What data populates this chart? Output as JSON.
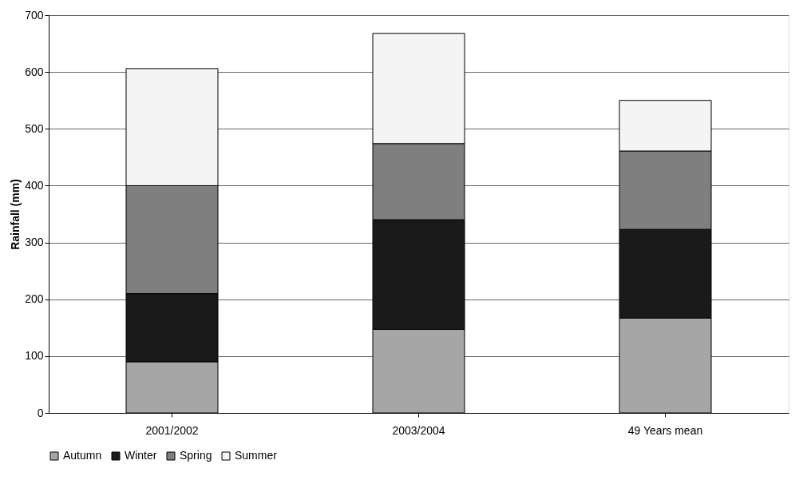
{
  "chart_data": {
    "type": "bar",
    "stacked": true,
    "ylabel": "Rainfall (mm)",
    "categories": [
      "2001/2002",
      "2003/2004",
      "49 Years mean"
    ],
    "series": [
      {
        "name": "Autumn",
        "color": "#a6a6a6",
        "values": [
          90,
          147,
          167
        ]
      },
      {
        "name": "Winter",
        "color": "#1a1a1a",
        "values": [
          120,
          193,
          156
        ]
      },
      {
        "name": "Spring",
        "color": "#7f7f7f",
        "values": [
          190,
          134,
          138
        ]
      },
      {
        "name": "Summer",
        "color": "#f4f4f4",
        "values": [
          206,
          194,
          89
        ]
      }
    ],
    "ylim": [
      0,
      700
    ],
    "yticks": [
      0,
      100,
      200,
      300,
      400,
      500,
      600,
      700
    ],
    "grid": "y",
    "legend": "bottom"
  }
}
